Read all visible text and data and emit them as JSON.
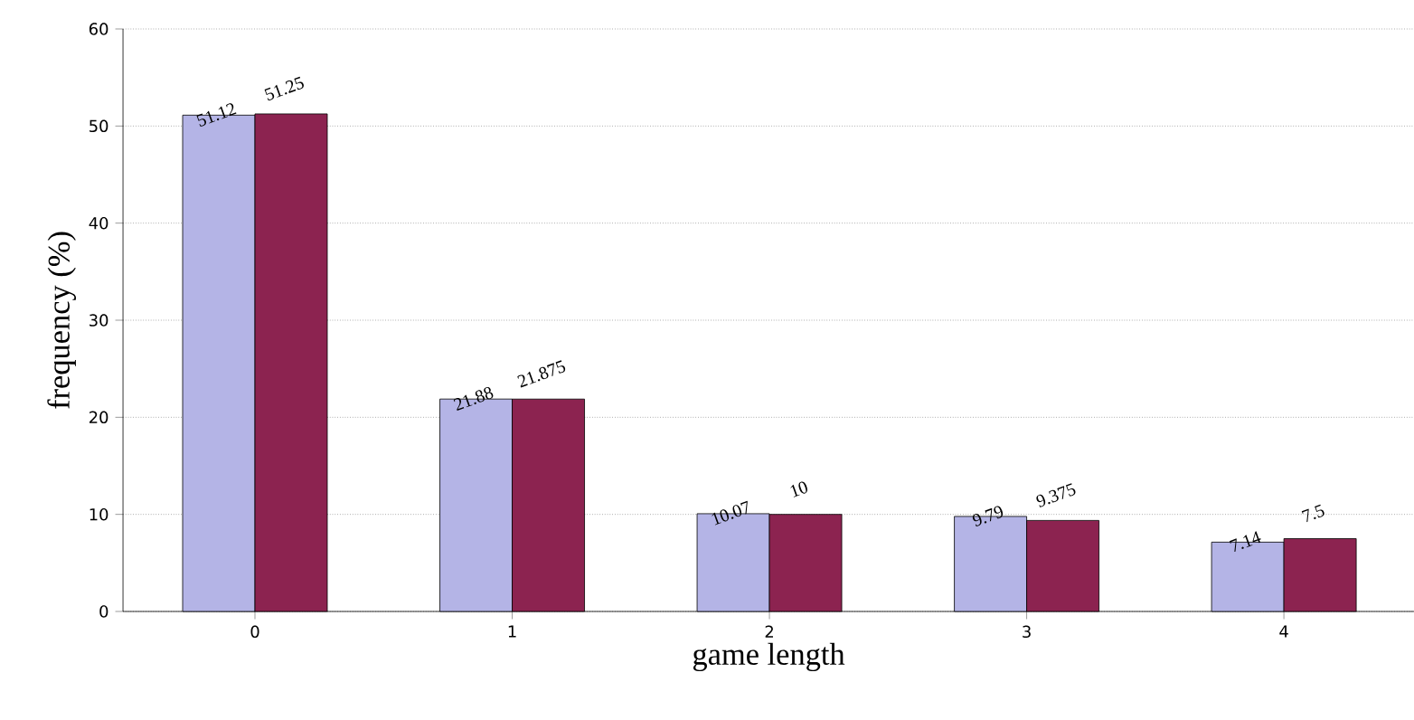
{
  "chart_data": {
    "type": "bar",
    "xlabel": "game length",
    "ylabel": "frequency (%)",
    "categories": [
      "0",
      "1",
      "2",
      "3",
      "4"
    ],
    "series": [
      {
        "color": "#b4b4e6",
        "values": [
          51.12,
          21.88,
          10.07,
          9.79,
          7.14
        ],
        "value_labels": [
          "51.12",
          "21.88",
          "10.07",
          "9.79",
          "7.14"
        ]
      },
      {
        "color": "#8c2350",
        "values": [
          51.25,
          21.875,
          10,
          9.375,
          7.5
        ],
        "value_labels": [
          "51.25",
          "21.875",
          "10",
          "9.375",
          "7.5"
        ]
      }
    ],
    "ylim": [
      0,
      60
    ],
    "yticks": [
      0,
      10,
      20,
      30,
      40,
      50,
      60
    ],
    "grid": "y"
  }
}
